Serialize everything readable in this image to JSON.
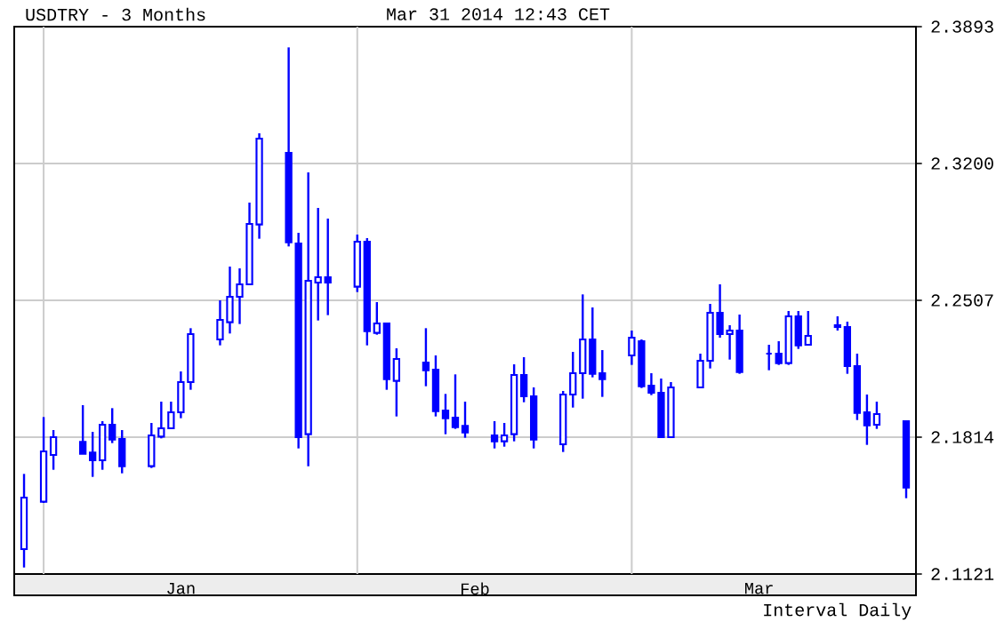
{
  "chart_data": {
    "type": "candlestick",
    "title": "USDTRY - 3 Months",
    "subtitle": "Mar 31 2014 12:43 CET",
    "annotations": [
      "Interval Daily"
    ],
    "color": "#0000ff",
    "grid": true,
    "x": [
      "2013-12-31",
      "2014-01-02",
      "2014-01-03",
      "2014-01-06",
      "2014-01-07",
      "2014-01-08",
      "2014-01-09",
      "2014-01-10",
      "2014-01-13",
      "2014-01-14",
      "2014-01-15",
      "2014-01-16",
      "2014-01-17",
      "2014-01-20",
      "2014-01-21",
      "2014-01-22",
      "2014-01-23",
      "2014-01-24",
      "2014-01-27",
      "2014-01-28",
      "2014-01-29",
      "2014-01-30",
      "2014-01-31",
      "2014-02-03",
      "2014-02-04",
      "2014-02-05",
      "2014-02-06",
      "2014-02-07",
      "2014-02-10",
      "2014-02-11",
      "2014-02-12",
      "2014-02-13",
      "2014-02-14",
      "2014-02-17",
      "2014-02-18",
      "2014-02-19",
      "2014-02-20",
      "2014-02-21",
      "2014-02-24",
      "2014-02-25",
      "2014-02-26",
      "2014-02-27",
      "2014-02-28",
      "2014-03-03",
      "2014-03-04",
      "2014-03-05",
      "2014-03-06",
      "2014-03-07",
      "2014-03-10",
      "2014-03-11",
      "2014-03-12",
      "2014-03-13",
      "2014-03-14",
      "2014-03-17",
      "2014-03-18",
      "2014-03-19",
      "2014-03-20",
      "2014-03-21",
      "2014-03-24",
      "2014-03-25",
      "2014-03-26",
      "2014-03-27",
      "2014-03-28",
      "2014-03-31"
    ],
    "ohlc": [
      [
        2.1247,
        2.1628,
        2.1154,
        2.1508
      ],
      [
        2.1487,
        2.1916,
        2.1481,
        2.1742
      ],
      [
        2.1724,
        2.185,
        2.1649,
        2.1814
      ],
      [
        2.179,
        2.1976,
        2.173,
        2.173
      ],
      [
        2.1736,
        2.1841,
        2.1613,
        2.1697
      ],
      [
        2.1697,
        2.1895,
        2.1649,
        2.1877
      ],
      [
        2.1877,
        2.1961,
        2.1784,
        2.1802
      ],
      [
        2.1805,
        2.185,
        2.1631,
        2.1667
      ],
      [
        2.1667,
        2.1886,
        2.1658,
        2.1823
      ],
      [
        2.1817,
        2.1994,
        2.1808,
        2.1859
      ],
      [
        2.1859,
        2.1994,
        2.1856,
        2.194
      ],
      [
        2.194,
        2.2147,
        2.191,
        2.2093
      ],
      [
        2.2093,
        2.2366,
        2.2054,
        2.2336
      ],
      [
        2.2309,
        2.2507,
        2.2279,
        2.2408
      ],
      [
        2.2396,
        2.2678,
        2.2339,
        2.2525
      ],
      [
        2.2525,
        2.2669,
        2.2387,
        2.2588
      ],
      [
        2.2588,
        2.3002,
        2.2588,
        2.2894
      ],
      [
        2.2891,
        2.3353,
        2.2819,
        2.3326
      ],
      [
        2.3254,
        2.3788,
        2.278,
        2.2801
      ],
      [
        2.2795,
        2.2849,
        2.1757,
        2.1814
      ],
      [
        2.1829,
        2.3155,
        2.1667,
        2.2606
      ],
      [
        2.2597,
        2.2975,
        2.2405,
        2.2624
      ],
      [
        2.2624,
        2.2921,
        2.2432,
        2.2597
      ],
      [
        2.2576,
        2.284,
        2.2549,
        2.2804
      ],
      [
        2.2804,
        2.2822,
        2.2279,
        2.2351
      ],
      [
        2.2342,
        2.2498,
        2.2333,
        2.239
      ],
      [
        2.239,
        2.239,
        2.2054,
        2.2108
      ],
      [
        2.2099,
        2.2264,
        2.1919,
        2.221
      ],
      [
        2.2192,
        2.2366,
        2.2072,
        2.2153
      ],
      [
        2.2156,
        2.2228,
        2.1919,
        2.1946
      ],
      [
        2.1949,
        2.2033,
        2.1829,
        2.191
      ],
      [
        2.1913,
        2.2132,
        2.1856,
        2.1865
      ],
      [
        2.1871,
        2.1994,
        2.1811,
        2.1838
      ],
      [
        2.1823,
        2.1895,
        2.1757,
        2.1793
      ],
      [
        2.1793,
        2.1886,
        2.1766,
        2.1823
      ],
      [
        2.1829,
        2.2183,
        2.1793,
        2.2129
      ],
      [
        2.2129,
        2.2219,
        2.1991,
        2.2021
      ],
      [
        2.2021,
        2.2066,
        2.1757,
        2.1802
      ],
      [
        2.1778,
        2.2048,
        2.1739,
        2.203
      ],
      [
        2.203,
        2.2246,
        2.1964,
        2.2138
      ],
      [
        2.2138,
        2.2537,
        2.2009,
        2.2309
      ],
      [
        2.2309,
        2.2471,
        2.2117,
        2.2135
      ],
      [
        2.2138,
        2.2255,
        2.2018,
        2.2108
      ],
      [
        2.2228,
        2.2354,
        2.218,
        2.2318
      ],
      [
        2.23,
        2.2309,
        2.2063,
        2.2072
      ],
      [
        2.2075,
        2.2138,
        2.2027,
        2.2039
      ],
      [
        2.2039,
        2.2111,
        2.1811,
        2.1814
      ],
      [
        2.1814,
        2.2093,
        2.1811,
        2.2066
      ],
      [
        2.2066,
        2.2237,
        2.2063,
        2.2201
      ],
      [
        2.2201,
        2.2489,
        2.2162,
        2.2444
      ],
      [
        2.2444,
        2.2588,
        2.2318,
        2.2336
      ],
      [
        2.2336,
        2.2381,
        2.2207,
        2.2354
      ],
      [
        2.2354,
        2.2435,
        2.2135,
        2.2144
      ],
      [
        2.2237,
        2.2282,
        2.2153,
        2.2237
      ],
      [
        2.2237,
        2.23,
        2.218,
        2.2189
      ],
      [
        2.2189,
        2.2453,
        2.218,
        2.2426
      ],
      [
        2.2426,
        2.2453,
        2.2261,
        2.2279
      ],
      [
        2.2282,
        2.2453,
        2.2279,
        2.2327
      ],
      [
        2.2381,
        2.2426,
        2.2354,
        2.2372
      ],
      [
        2.2372,
        2.2399,
        2.2135,
        2.2174
      ],
      [
        2.2174,
        2.2237,
        2.1901,
        2.1937
      ],
      [
        2.194,
        2.203,
        2.1775,
        2.1874
      ],
      [
        2.1877,
        2.1994,
        2.1856,
        2.1931
      ],
      [
        2.1895,
        2.1895,
        2.1505,
        2.1559
      ]
    ],
    "xlim": [
      "2013-12-30",
      "2014-04-01"
    ],
    "xticks": [
      {
        "value": "2014-01-02",
        "label": null
      },
      {
        "value": "2014-01-16",
        "label": "Jan"
      },
      {
        "value": "2014-02-03",
        "label": null
      },
      {
        "value": "2014-02-15",
        "label": "Feb"
      },
      {
        "value": "2014-03-03",
        "label": null
      },
      {
        "value": "2014-03-16",
        "label": "Mar"
      }
    ],
    "ylim": [
      2.1121,
      2.3893
    ],
    "yticks": [
      2.1121,
      2.1814,
      2.2507,
      {
        "value": 2.32,
        "label": "2.3200"
      },
      2.3893
    ]
  }
}
